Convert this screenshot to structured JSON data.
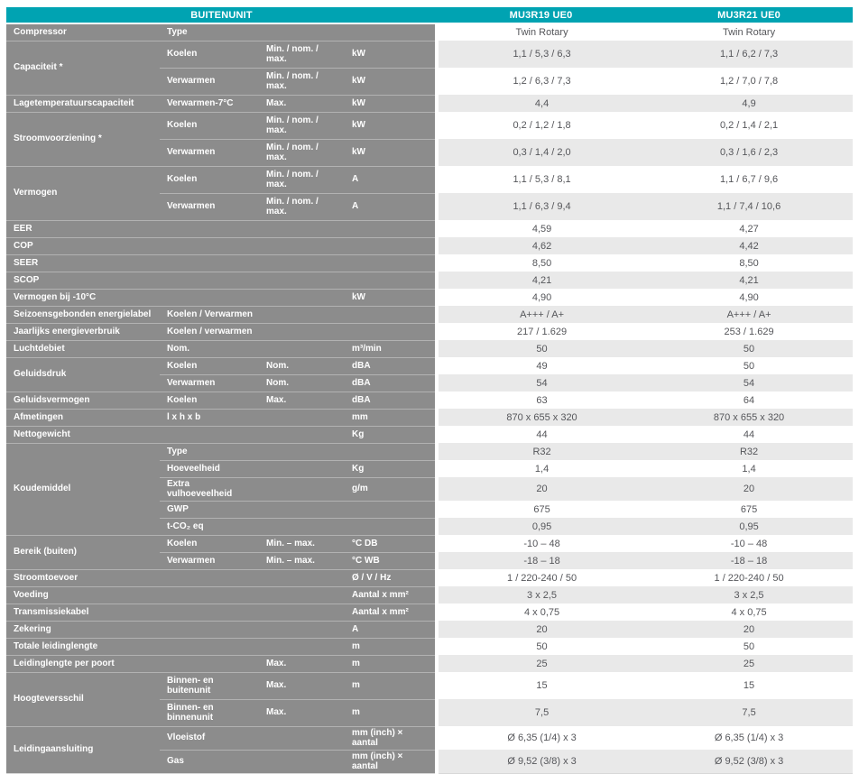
{
  "colors": {
    "accent_teal": "#00a3b2",
    "label_gray": "#8c8c8c",
    "zebra_gray": "#e9e9e9",
    "value_text": "#55565a"
  },
  "header": {
    "title": "BUITENUNIT",
    "model1": "MU3R19 UE0",
    "model2": "MU3R21 UE0"
  },
  "rows": [
    {
      "label": "Compressor",
      "span": 1,
      "sub": "Type",
      "cond": "",
      "unit": "",
      "v1": "Twin Rotary",
      "v2": "Twin Rotary"
    },
    {
      "label": "Capaciteit *",
      "span": 2,
      "sub": "Koelen",
      "cond": "Min. / nom. / max.",
      "unit": "kW",
      "v1": "1,1 / 5,3 / 6,3",
      "v2": "1,1 / 6,2 / 7,3",
      "tall": true
    },
    {
      "sub": "Verwarmen",
      "cond": "Min. / nom. / max.",
      "unit": "kW",
      "v1": "1,2 / 6,3 / 7,3",
      "v2": "1,2 / 7,0 / 7,8",
      "tall": true
    },
    {
      "label": "Lagetemperatuurscapaciteit",
      "span": 1,
      "sub": "Verwarmen-7°C",
      "cond": "Max.",
      "unit": "kW",
      "v1": "4,4",
      "v2": "4,9"
    },
    {
      "label": "Stroomvoorziening *",
      "span": 2,
      "sub": "Koelen",
      "cond": "Min. / nom. / max.",
      "unit": "kW",
      "v1": "0,2 / 1,2 / 1,8",
      "v2": "0,2 / 1,4 / 2,1",
      "tall": true
    },
    {
      "sub": "Verwarmen",
      "cond": "Min. / nom. / max.",
      "unit": "kW",
      "v1": "0,3 / 1,4 / 2,0",
      "v2": "0,3 / 1,6 / 2,3",
      "tall": true
    },
    {
      "label": "Vermogen",
      "span": 2,
      "sub": "Koelen",
      "cond": "Min. / nom. / max.",
      "unit": "A",
      "v1": "1,1 / 5,3 / 8,1",
      "v2": "1,1 / 6,7 / 9,6",
      "tall": true
    },
    {
      "sub": "Verwarmen",
      "cond": "Min. / nom. / max.",
      "unit": "A",
      "v1": "1,1 / 6,3 / 9,4",
      "v2": "1,1 / 7,4 / 10,6",
      "tall": true
    },
    {
      "label": "EER",
      "span": 1,
      "sub": "",
      "cond": "",
      "unit": "",
      "v1": "4,59",
      "v2": "4,27"
    },
    {
      "label": "COP",
      "span": 1,
      "sub": "",
      "cond": "",
      "unit": "",
      "v1": "4,62",
      "v2": "4,42"
    },
    {
      "label": "SEER",
      "span": 1,
      "sub": "",
      "cond": "",
      "unit": "",
      "v1": "8,50",
      "v2": "8,50"
    },
    {
      "label": "SCOP",
      "span": 1,
      "sub": "",
      "cond": "",
      "unit": "",
      "v1": "4,21",
      "v2": "4,21"
    },
    {
      "label": "Vermogen bij -10°C",
      "span": 1,
      "sub": "",
      "cond": "",
      "unit": "kW",
      "v1": "4,90",
      "v2": "4,90"
    },
    {
      "label": "Seizoensgebonden energielabel",
      "span": 1,
      "sub": "Koelen / Verwarmen",
      "cond": "",
      "unit": "",
      "v1": "A+++ / A+",
      "v2": "A+++ / A+"
    },
    {
      "label": "Jaarlijks energieverbruik",
      "span": 1,
      "sub": "Koelen / verwarmen",
      "cond": "",
      "unit": "",
      "v1": "217 / 1.629",
      "v2": "253 / 1.629"
    },
    {
      "label": "Luchtdebiet",
      "span": 1,
      "sub": "Nom.",
      "cond": "",
      "unit": "m³/min",
      "v1": "50",
      "v2": "50"
    },
    {
      "label": "Geluidsdruk",
      "span": 2,
      "sub": "Koelen",
      "cond": "Nom.",
      "unit": "dBA",
      "v1": "49",
      "v2": "50"
    },
    {
      "sub": "Verwarmen",
      "cond": "Nom.",
      "unit": "dBA",
      "v1": "54",
      "v2": "54"
    },
    {
      "label": "Geluidsvermogen",
      "span": 1,
      "sub": "Koelen",
      "cond": "Max.",
      "unit": "dBA",
      "v1": "63",
      "v2": "64"
    },
    {
      "label": "Afmetingen",
      "span": 1,
      "sub": "l x h x b",
      "cond": "",
      "unit": "mm",
      "v1": "870 x 655 x 320",
      "v2": "870 x 655 x 320"
    },
    {
      "label": "Nettogewicht",
      "span": 1,
      "sub": "",
      "cond": "",
      "unit": "Kg",
      "v1": "44",
      "v2": "44"
    },
    {
      "label": "Koudemiddel",
      "span": 5,
      "sub": "Type",
      "cond": "",
      "unit": "",
      "v1": "R32",
      "v2": "R32"
    },
    {
      "sub": "Hoeveelheid",
      "cond": "",
      "unit": "Kg",
      "v1": "1,4",
      "v2": "1,4"
    },
    {
      "sub": "Extra vulhoeveelheid",
      "cond": "",
      "unit": "g/m",
      "v1": "20",
      "v2": "20"
    },
    {
      "sub": "GWP",
      "cond": "",
      "unit": "",
      "v1": "675",
      "v2": "675"
    },
    {
      "sub": "t-CO₂ eq",
      "cond": "",
      "unit": "",
      "v1": "0,95",
      "v2": "0,95"
    },
    {
      "label": "Bereik (buiten)",
      "span": 2,
      "sub": "Koelen",
      "cond": "Min. – max.",
      "unit": "°C DB",
      "v1": "-10 – 48",
      "v2": "-10 – 48"
    },
    {
      "sub": "Verwarmen",
      "cond": "Min. – max.",
      "unit": "°C WB",
      "v1": "-18 – 18",
      "v2": "-18 – 18"
    },
    {
      "label": "Stroomtoevoer",
      "span": 1,
      "sub": "",
      "cond": "",
      "unit": "Ø / V / Hz",
      "v1": "1 / 220-240 / 50",
      "v2": "1 / 220-240 / 50"
    },
    {
      "label": "Voeding",
      "span": 1,
      "sub": "",
      "cond": "",
      "unit": "Aantal x mm²",
      "v1": "3 x 2,5",
      "v2": "3 x 2,5"
    },
    {
      "label": "Transmissiekabel",
      "span": 1,
      "sub": "",
      "cond": "",
      "unit": "Aantal x mm²",
      "v1": "4 x 0,75",
      "v2": "4 x 0,75"
    },
    {
      "label": "Zekering",
      "span": 1,
      "sub": "",
      "cond": "",
      "unit": "A",
      "v1": "20",
      "v2": "20"
    },
    {
      "label": "Totale leidinglengte",
      "span": 1,
      "sub": "",
      "cond": "",
      "unit": "m",
      "v1": "50",
      "v2": "50"
    },
    {
      "label": "Leidinglengte per poort",
      "span": 1,
      "sub": "",
      "cond": "Max.",
      "unit": "m",
      "v1": "25",
      "v2": "25"
    },
    {
      "label": "Hoogteversschil",
      "span": 2,
      "sub": "Binnen- en buitenunit",
      "cond": "Max.",
      "unit": "m",
      "v1": "15",
      "v2": "15",
      "tall": true
    },
    {
      "sub": "Binnen- en binnenunit",
      "cond": "Max.",
      "unit": "m",
      "v1": "7,5",
      "v2": "7,5",
      "tall": true
    },
    {
      "label": "Leidingaansluiting",
      "span": 2,
      "sub": "Vloeistof",
      "cond": "",
      "unit": "mm (inch) × aantal",
      "v1": "Ø 6,35 (1/4) x 3",
      "v2": "Ø 6,35 (1/4) x 3"
    },
    {
      "sub": "Gas",
      "cond": "",
      "unit": "mm (inch) × aantal",
      "v1": "Ø 9,52 (3/8) x 3",
      "v2": "Ø 9,52 (3/8) x 3"
    }
  ]
}
